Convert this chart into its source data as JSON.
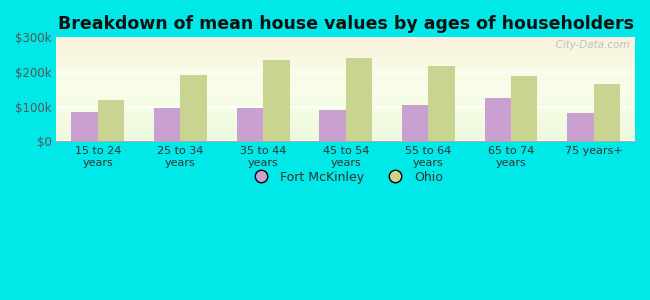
{
  "categories": [
    "15 to 24\nyears",
    "25 to 34\nyears",
    "35 to 44\nyears",
    "45 to 54\nyears",
    "55 to 64\nyears",
    "65 to 74\nyears",
    "75 years+"
  ],
  "fort_mckinley": [
    85000,
    95000,
    95000,
    90000,
    105000,
    125000,
    80000
  ],
  "ohio": [
    120000,
    190000,
    235000,
    240000,
    218000,
    188000,
    165000
  ],
  "fort_mckinley_color": "#c9a0d0",
  "ohio_color": "#c8d490",
  "background_color": "#00e8e8",
  "title": "Breakdown of mean house values by ages of householders",
  "title_fontsize": 12.5,
  "ylim": [
    0,
    300000
  ],
  "yticks": [
    0,
    100000,
    200000,
    300000
  ],
  "ytick_labels": [
    "$0",
    "$100k",
    "$200k",
    "$300k"
  ],
  "legend_fort": "Fort McKinley",
  "legend_ohio": "Ohio",
  "watermark": "  City-Data.com"
}
